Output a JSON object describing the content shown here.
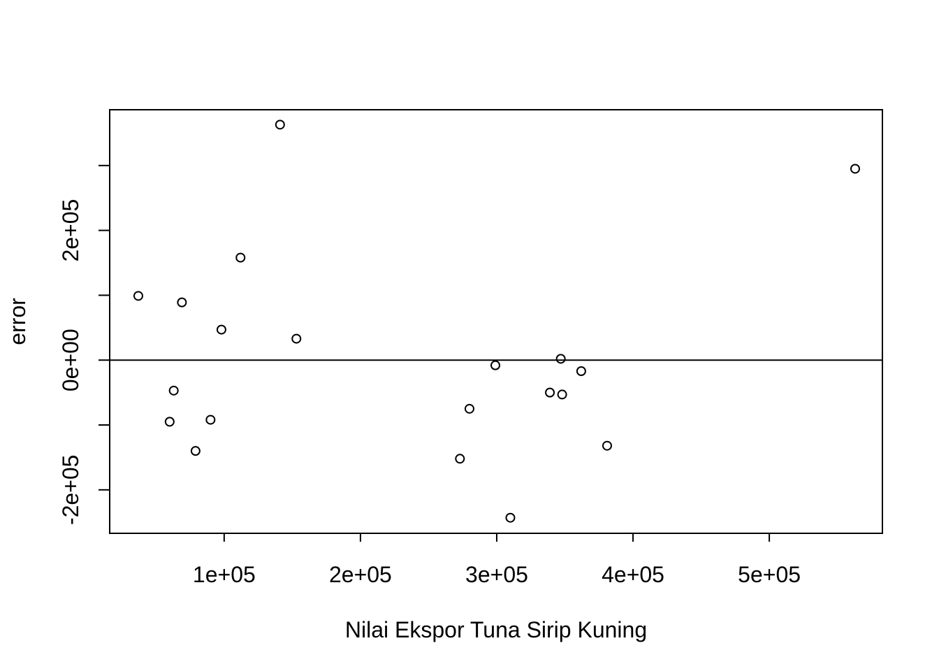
{
  "chart_data": {
    "type": "scatter",
    "title": "",
    "xlabel": "Nilai Ekspor Tuna Sirip Kuning",
    "ylabel": "error",
    "xlim": [
      16000,
      583000
    ],
    "ylim": [
      -267000,
      386000
    ],
    "x_ticks": [
      100000,
      200000,
      300000,
      400000,
      500000
    ],
    "x_tick_labels": [
      "1e+05",
      "2e+05",
      "3e+05",
      "4e+05",
      "5e+05"
    ],
    "y_ticks": [
      -200000,
      -100000,
      0,
      100000,
      200000,
      300000
    ],
    "y_tick_labels": [
      "-2e+05",
      "",
      "0e+00",
      "",
      "2e+05",
      ""
    ],
    "reference_line_y": 0,
    "grid": false,
    "points": [
      {
        "x": 37000,
        "y": 99000
      },
      {
        "x": 60000,
        "y": -95000
      },
      {
        "x": 63000,
        "y": -47000
      },
      {
        "x": 69000,
        "y": 89000
      },
      {
        "x": 79000,
        "y": -140000
      },
      {
        "x": 90000,
        "y": -92000
      },
      {
        "x": 98000,
        "y": 47000
      },
      {
        "x": 112000,
        "y": 158000
      },
      {
        "x": 141000,
        "y": 363000
      },
      {
        "x": 153000,
        "y": 33000
      },
      {
        "x": 273000,
        "y": -152000
      },
      {
        "x": 280000,
        "y": -75000
      },
      {
        "x": 299000,
        "y": -8000
      },
      {
        "x": 310000,
        "y": -243000
      },
      {
        "x": 339000,
        "y": -50000
      },
      {
        "x": 347000,
        "y": 2000
      },
      {
        "x": 348000,
        "y": -53000
      },
      {
        "x": 362000,
        "y": -17000
      },
      {
        "x": 381000,
        "y": -132000
      },
      {
        "x": 563000,
        "y": 295000
      }
    ]
  }
}
